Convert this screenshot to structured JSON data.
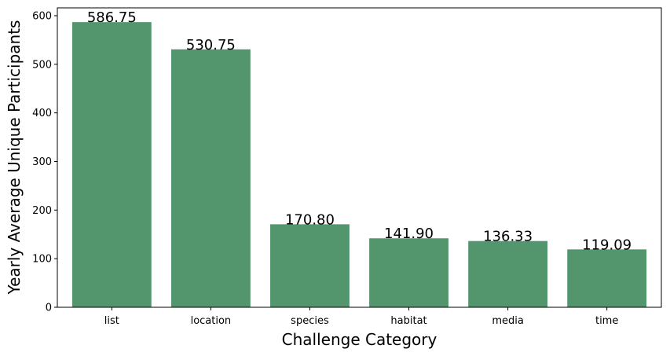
{
  "chart_data": {
    "type": "bar",
    "title": "",
    "xlabel": "Challenge Category",
    "ylabel": "Yearly Average Unique Participants",
    "categories": [
      "list",
      "location",
      "species",
      "habitat",
      "media",
      "time"
    ],
    "values": [
      586.75,
      530.75,
      170.8,
      141.9,
      136.33,
      119.09
    ],
    "value_labels": [
      "586.75",
      "530.75",
      "170.80",
      "141.90",
      "136.33",
      "119.09"
    ],
    "yticks": [
      0,
      100,
      200,
      300,
      400,
      500,
      600
    ],
    "ylim": [
      0,
      616.09
    ],
    "grid": false,
    "bar_color": "#53966d"
  }
}
